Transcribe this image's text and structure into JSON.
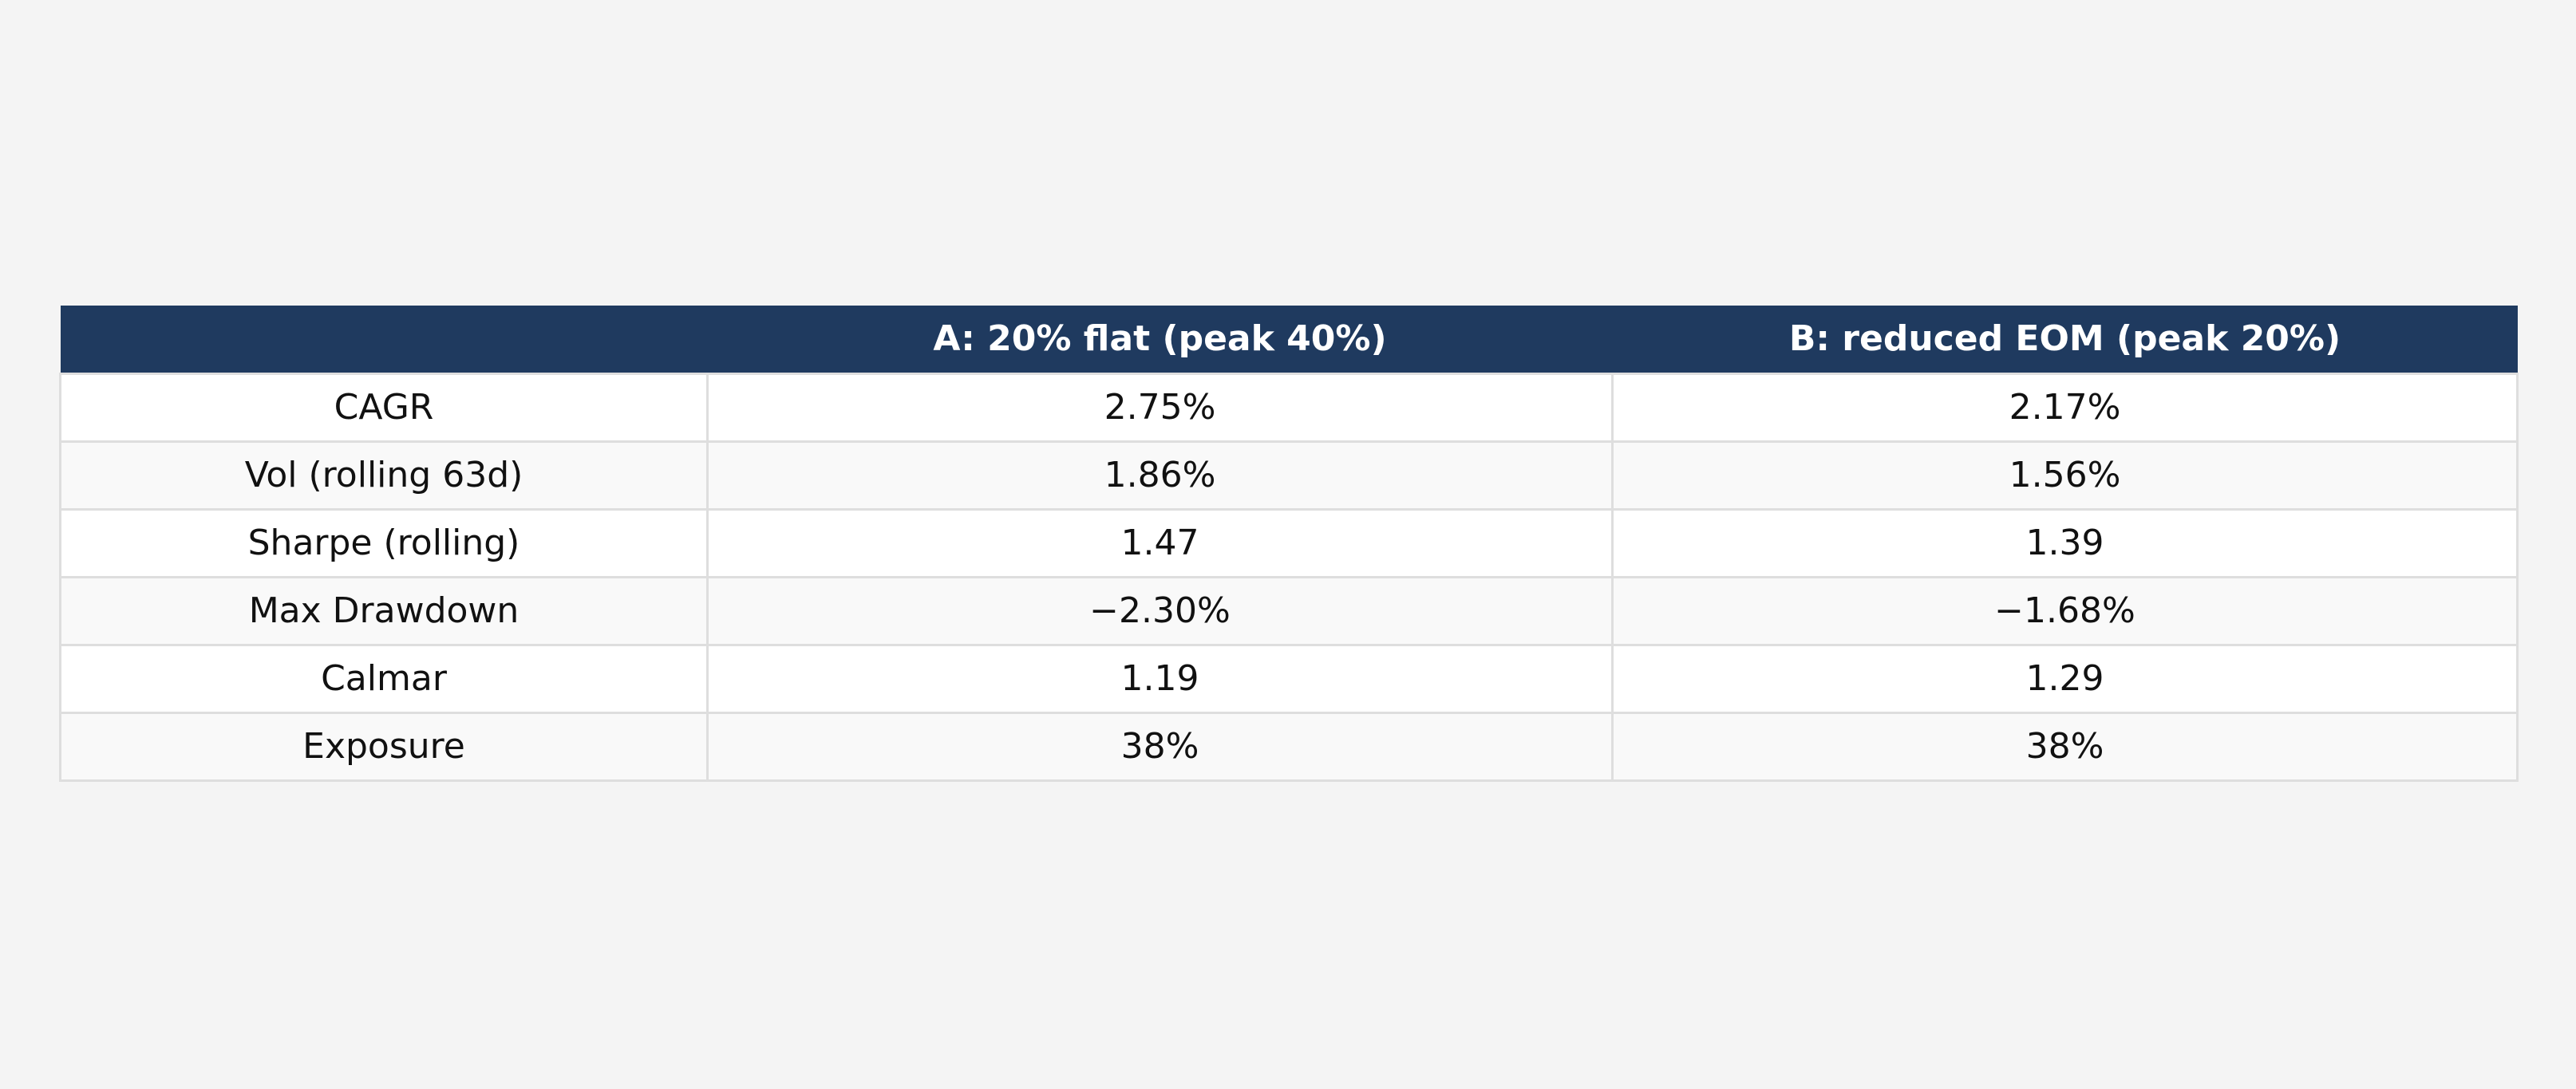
{
  "table": {
    "columns": [
      "A: 20% flat (peak 40%)",
      "B: reduced EOM (peak 20%)"
    ],
    "rows": [
      [
        "CAGR",
        "2.75%",
        "2.17%"
      ],
      [
        "Vol (rolling 63d)",
        "1.86%",
        "1.56%"
      ],
      [
        "Sharpe (rolling)",
        "1.47",
        "1.39"
      ],
      [
        "Max Drawdown",
        "−2.30%",
        "−1.68%"
      ],
      [
        "Calmar",
        "1.19",
        "1.29"
      ],
      [
        "Exposure",
        "38%",
        "38%"
      ]
    ]
  }
}
